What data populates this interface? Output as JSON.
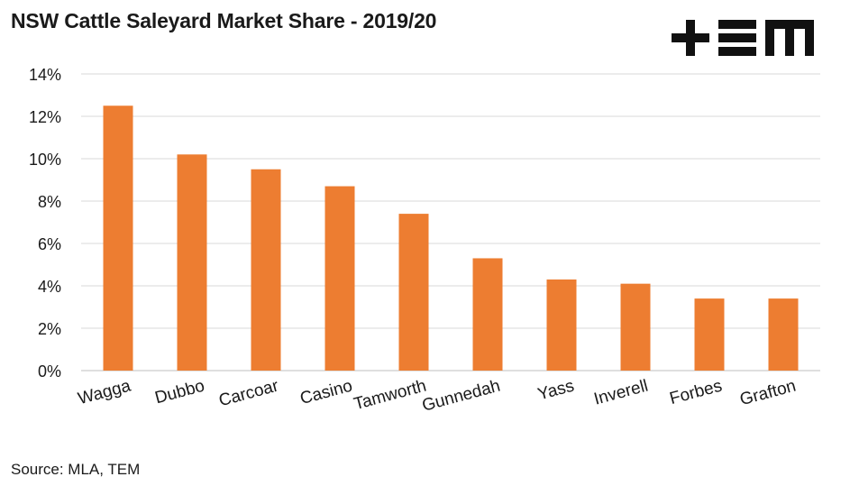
{
  "title": "NSW Cattle Saleyard Market Share - 2019/20",
  "source": "Source: MLA, TEM",
  "logo": {
    "icon": "tem-logo-icon"
  },
  "colors": {
    "bar": "#ed7d31",
    "grid": "#d9d9d9",
    "text": "#1a1a1a",
    "logo": "#111111"
  },
  "chart_data": {
    "type": "bar",
    "title": "NSW Cattle Saleyard Market Share - 2019/20",
    "xlabel": "",
    "ylabel": "",
    "categories": [
      "Wagga",
      "Dubbo",
      "Carcoar",
      "Casino",
      "Tamworth",
      "Gunnedah",
      "Yass",
      "Inverell",
      "Forbes",
      "Grafton"
    ],
    "values": [
      12.5,
      10.2,
      9.5,
      8.7,
      7.4,
      5.3,
      4.3,
      4.1,
      3.4,
      3.4
    ],
    "ylim": [
      0,
      14
    ],
    "yticks": [
      "0%",
      "2%",
      "4%",
      "6%",
      "8%",
      "10%",
      "12%",
      "14%"
    ],
    "grid": true,
    "legend": "none"
  }
}
